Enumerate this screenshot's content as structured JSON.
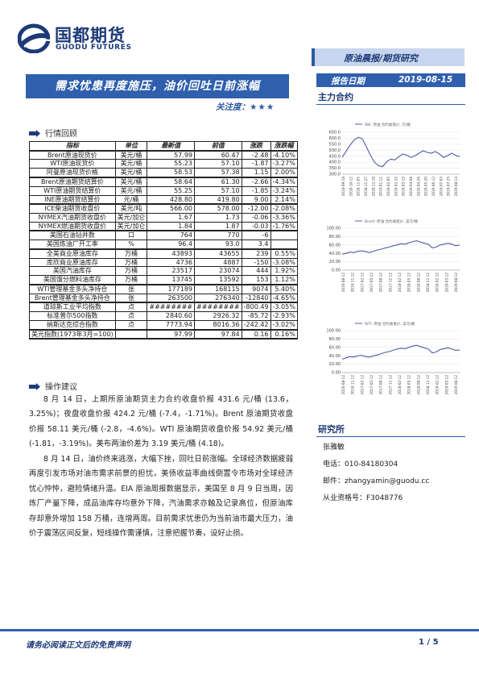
{
  "logo": {
    "cn": "国都期货",
    "en": "GUODU FUTURES"
  },
  "header": {
    "category": "原油晨报/期货研究"
  },
  "title": "需求忧患再度施压，油价回吐日前涨幅",
  "attention": {
    "label": "关注度：",
    "stars": "★★★"
  },
  "report_date": {
    "label": "报告日期",
    "value": "2019-08-15"
  },
  "side_title": "主力合约",
  "section_market": "行情回顾",
  "table": {
    "headers": [
      "指标",
      "单位",
      "最新值",
      "前值",
      "涨跌",
      "涨跌幅"
    ],
    "rows": [
      [
        "Brent原油现货价",
        "美元/桶",
        "57.99",
        "60.47",
        "-2.48",
        "-4.10%"
      ],
      [
        "WTI原油现货价",
        "美元/桶",
        "55.23",
        "57.10",
        "-1.87",
        "-3.27%"
      ],
      [
        "阿曼原油现货价格",
        "美元/桶",
        "58.53",
        "57.38",
        "1.15",
        "2.00%"
      ],
      [
        "Brent原油期货结算价",
        "美元/桶",
        "58.64",
        "61.30",
        "-2.66",
        "-4.34%"
      ],
      [
        "WTI原油期货结算价",
        "美元/桶",
        "55.25",
        "57.10",
        "-1.85",
        "-3.24%"
      ],
      [
        "INE原油期货结算价",
        "元/桶",
        "428.80",
        "419.80",
        "9.00",
        "2.14%"
      ],
      [
        "ICE柴油期货收盘价",
        "美元/吨",
        "566.00",
        "578.00",
        "-12.00",
        "-2.08%"
      ],
      [
        "NYMEX汽油期货收盘价",
        "美元/加仑",
        "1.67",
        "1.73",
        "-0.06",
        "-3.36%"
      ],
      [
        "NYMEX燃油期货收盘价",
        "美元/加仑",
        "1.84",
        "1.87",
        "-0.03",
        "-1.76%"
      ],
      [
        "美国石油钻井数",
        "口",
        "764",
        "770",
        "-6",
        ""
      ],
      [
        "美国炼油厂开工率",
        "%",
        "96.4",
        "93.0",
        "3.4",
        ""
      ],
      [
        "全美商业原油库存",
        "万桶",
        "43893",
        "43655",
        "239",
        "0.55%"
      ],
      [
        "库欣商业原油库存",
        "万桶",
        "4736",
        "4887",
        "-150",
        "-3.08%"
      ],
      [
        "美国汽油库存",
        "万桶",
        "23517",
        "23074",
        "444",
        "1.92%"
      ],
      [
        "美国馏分燃料油库存",
        "万桶",
        "13745",
        "13592",
        "153",
        "1.12%"
      ],
      [
        "WTI管理基金多头净持仓",
        "张",
        "177189",
        "168115",
        "9074",
        "5.40%"
      ],
      [
        "Brent管理基金多头净持仓",
        "张",
        "263500",
        "276340",
        "-12840",
        "-4.65%"
      ],
      [
        "道琼斯工业平均指数",
        "点",
        "########",
        "########",
        "-800.49",
        "-3.05%"
      ],
      [
        "标准普尔500指数",
        "点",
        "2840.60",
        "2926.32",
        "-85.72",
        "-2.93%"
      ],
      [
        "纳斯达克综合指数",
        "点",
        "7773.94",
        "8016.36",
        "-242.42",
        "-3.02%"
      ],
      [
        "美元指数(1973年3月=100)",
        "",
        "97.99",
        "97.84",
        "0.16",
        "0.16%"
      ]
    ]
  },
  "section_advice": "操作建议",
  "para1": "8 月 14 日，上期所原油期货主力合约收盘价报 431.6 元/桶 (13.6，3.25%)；夜盘收盘价报 424.2 元/桶 (-7.4，-1.71%)。Brent 原油期货收盘价报 58.11 美元/桶 (-2.8，-4.6%)。WTI 原油期货收盘价报 54.92 美元/桶 (-1.81，-3.19%)。美布两油价差为 3.19 美元/桶 (4.18)。",
  "para2": "8 月 14 日，油价终来逃涨，大幅下挫，回吐日前涨幅。全球经济数据疲弱再度引发市场对油市需求前景的担忧，美债收益率曲线倒置令市场对全球经济忧心忡忡，避险情绪升温。EIA 原油周报数据显示，美国至 8 月 9 日当周，因炼厂产量下降，成品油库存均意外下降，汽油需求亦触及记录高位，但原油库存却意外增加 158 万桶，连增两周。目前需求忧患仍为当前油市最大压力，油价于震荡区间反复，短线操作需谨慎，注意把握节奏，设好止损。",
  "charts": [
    {
      "legend": "INE: 原油 合约收盘价, 元/桶",
      "y_ticks": [
        "650.0",
        "600.0",
        "550.0",
        "500.0",
        "450.0",
        "400.0",
        "350.0",
        "300.0"
      ],
      "x_labels": [
        "2018-09-18",
        "2018-10-12",
        "2018-11-05",
        "2018-11-27",
        "2018-12-19",
        "2019-01-11",
        "2019-02-05",
        "2019-02-25",
        "2019-03-15",
        "2019-04-08",
        "2019-04-26",
        "2019-05-20",
        "2019-06-12",
        "2019-07-03",
        "2019-07-25",
        "2019-08-14"
      ]
    },
    {
      "legend": "Brent: 原油 合约收盘价, 美元/桶",
      "y_ticks": [
        "100.00",
        "80.00",
        "60.00",
        "40.00",
        "20.00",
        "0.00"
      ],
      "x_labels": [
        "2016-08-12",
        "2016-11-12",
        "2017-02-12",
        "2017-05-12",
        "2017-08-12",
        "2017-11-12",
        "2018-02-12",
        "2018-05-12",
        "2018-08-12",
        "2018-11-12",
        "2019-02-12",
        "2019-05-12",
        "2019-08-12"
      ]
    },
    {
      "legend": "WTI: 原油 合约收盘价, 美元/桶",
      "y_ticks": [
        "100.00",
        "80.00",
        "60.00",
        "40.00",
        "20.00",
        "0.00"
      ],
      "x_labels": [
        "2016-08-12",
        "2016-11-12",
        "2017-02-12",
        "2017-05-12",
        "2017-08-12",
        "2017-11-12",
        "2018-02-12",
        "2018-05-12",
        "2018-08-12",
        "2018-11-12",
        "2019-02-12",
        "2019-05-12",
        "2019-08-12"
      ]
    }
  ],
  "research": {
    "title": "研究所",
    "name": "张雅敏",
    "phone": "电话：010-84180304",
    "email": "邮件：zhangyamin@guodu.cc",
    "cert": "从业资格号：F3048776"
  },
  "footer": {
    "disclaimer": "请务必阅读正文后的免责声明",
    "page": "1 / 5"
  },
  "colors": {
    "primary": "#2f5fad",
    "dark": "#1d3a78",
    "band": "#c7d6ee",
    "line": "#4a5fa0"
  }
}
